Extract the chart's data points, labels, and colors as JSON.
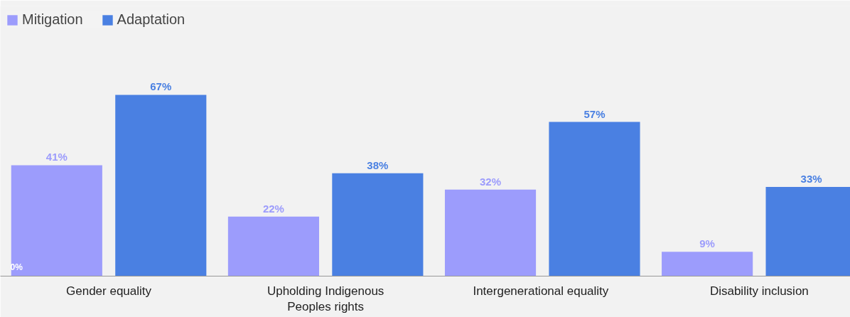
{
  "chart_data": {
    "type": "bar",
    "categories": [
      "Gender equality",
      "Upholding Indigenous\nPeoples rights",
      "Intergenerational  equality",
      "Disability inclusion"
    ],
    "series": [
      {
        "name": "Mitigation",
        "color": "#9c9cfc",
        "values": [
          41,
          22,
          32,
          9
        ],
        "value_labels": [
          "41%",
          "22%",
          "32%",
          "9%"
        ]
      },
      {
        "name": "Adaptation",
        "color": "#4a80e2",
        "values": [
          67,
          38,
          57,
          33
        ],
        "value_labels": [
          "67%",
          "38%",
          "57%",
          "33%"
        ]
      }
    ],
    "annotations": [
      "0%"
    ],
    "legend": "top left"
  }
}
